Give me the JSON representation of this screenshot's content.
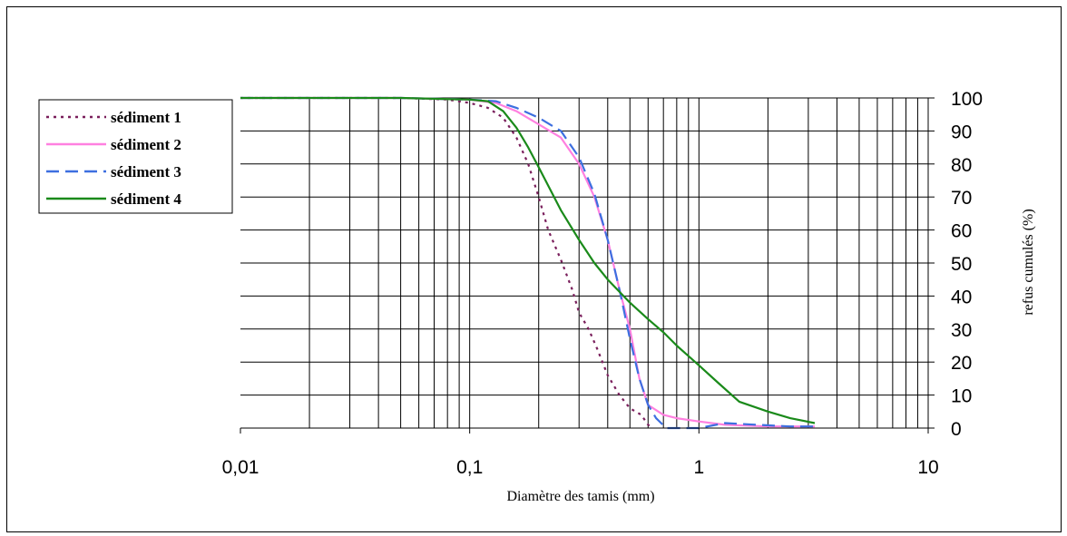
{
  "chart_data": {
    "type": "line",
    "x_scale": "log",
    "xlabel": "Diamètre des tamis (mm)",
    "ylabel": "refus cumulés (%)",
    "xlim": [
      0.01,
      10
    ],
    "ylim": [
      0,
      100
    ],
    "x_ticks": [
      {
        "value": 0.01,
        "label": "0,01"
      },
      {
        "value": 0.1,
        "label": "0,1"
      },
      {
        "value": 1,
        "label": "1"
      },
      {
        "value": 10,
        "label": "10"
      }
    ],
    "y_ticks": [
      {
        "value": 100,
        "label": "100"
      },
      {
        "value": 90,
        "label": "90"
      },
      {
        "value": 80,
        "label": "80"
      },
      {
        "value": 70,
        "label": "70"
      },
      {
        "value": 60,
        "label": "60"
      },
      {
        "value": 50,
        "label": "50"
      },
      {
        "value": 40,
        "label": "40"
      },
      {
        "value": 30,
        "label": "30"
      },
      {
        "value": 20,
        "label": "20"
      },
      {
        "value": 10,
        "label": "10"
      },
      {
        "value": 0,
        "label": "0"
      }
    ],
    "grid": true,
    "y_axis_side": "right",
    "legend_position": "top-left",
    "series": [
      {
        "name": "sédiment 1",
        "color": "#7a1f5c",
        "style": "dotted",
        "points": [
          [
            0.01,
            100
          ],
          [
            0.05,
            100
          ],
          [
            0.08,
            99.5
          ],
          [
            0.1,
            98.5
          ],
          [
            0.12,
            97
          ],
          [
            0.14,
            94
          ],
          [
            0.16,
            88
          ],
          [
            0.18,
            80
          ],
          [
            0.2,
            70
          ],
          [
            0.22,
            60
          ],
          [
            0.25,
            51
          ],
          [
            0.28,
            42
          ],
          [
            0.3,
            35
          ],
          [
            0.33,
            30
          ],
          [
            0.36,
            24
          ],
          [
            0.4,
            16
          ],
          [
            0.45,
            10
          ],
          [
            0.5,
            6
          ],
          [
            0.56,
            4
          ],
          [
            0.6,
            1
          ],
          [
            0.63,
            0
          ]
        ]
      },
      {
        "name": "sédiment 2",
        "color": "#ff80e0",
        "style": "solid",
        "points": [
          [
            0.01,
            100
          ],
          [
            0.05,
            100
          ],
          [
            0.1,
            99.5
          ],
          [
            0.13,
            98.5
          ],
          [
            0.16,
            96
          ],
          [
            0.2,
            92
          ],
          [
            0.25,
            88
          ],
          [
            0.3,
            80
          ],
          [
            0.35,
            70
          ],
          [
            0.4,
            57
          ],
          [
            0.45,
            42
          ],
          [
            0.5,
            30
          ],
          [
            0.55,
            15
          ],
          [
            0.6,
            7
          ],
          [
            0.7,
            4
          ],
          [
            0.8,
            3
          ],
          [
            1,
            2
          ],
          [
            1.3,
            1
          ],
          [
            2,
            0.5
          ],
          [
            3.2,
            0.5
          ]
        ]
      },
      {
        "name": "sédiment 3",
        "color": "#3d6fe0",
        "style": "dashed",
        "points": [
          [
            0.01,
            100
          ],
          [
            0.05,
            100
          ],
          [
            0.1,
            99.5
          ],
          [
            0.13,
            99
          ],
          [
            0.16,
            97
          ],
          [
            0.2,
            94
          ],
          [
            0.25,
            90
          ],
          [
            0.3,
            82
          ],
          [
            0.35,
            71
          ],
          [
            0.4,
            57
          ],
          [
            0.45,
            42
          ],
          [
            0.5,
            27
          ],
          [
            0.55,
            15
          ],
          [
            0.6,
            7
          ],
          [
            0.65,
            3
          ],
          [
            0.72,
            0
          ],
          [
            1,
            0
          ],
          [
            1.3,
            1.5
          ],
          [
            1.8,
            1
          ],
          [
            2.5,
            0.5
          ],
          [
            3.2,
            0.5
          ]
        ]
      },
      {
        "name": "sédiment 4",
        "color": "#1a8a1a",
        "style": "solid",
        "points": [
          [
            0.01,
            100
          ],
          [
            0.05,
            100
          ],
          [
            0.1,
            99.5
          ],
          [
            0.12,
            99
          ],
          [
            0.14,
            96
          ],
          [
            0.16,
            91
          ],
          [
            0.18,
            85
          ],
          [
            0.2,
            79
          ],
          [
            0.25,
            66
          ],
          [
            0.3,
            57
          ],
          [
            0.35,
            50
          ],
          [
            0.4,
            45
          ],
          [
            0.5,
            38
          ],
          [
            0.6,
            33
          ],
          [
            0.7,
            29
          ],
          [
            0.8,
            25
          ],
          [
            1,
            19
          ],
          [
            1.2,
            14
          ],
          [
            1.5,
            8
          ],
          [
            2,
            5
          ],
          [
            2.5,
            3
          ],
          [
            3.2,
            1.5
          ]
        ]
      }
    ]
  }
}
